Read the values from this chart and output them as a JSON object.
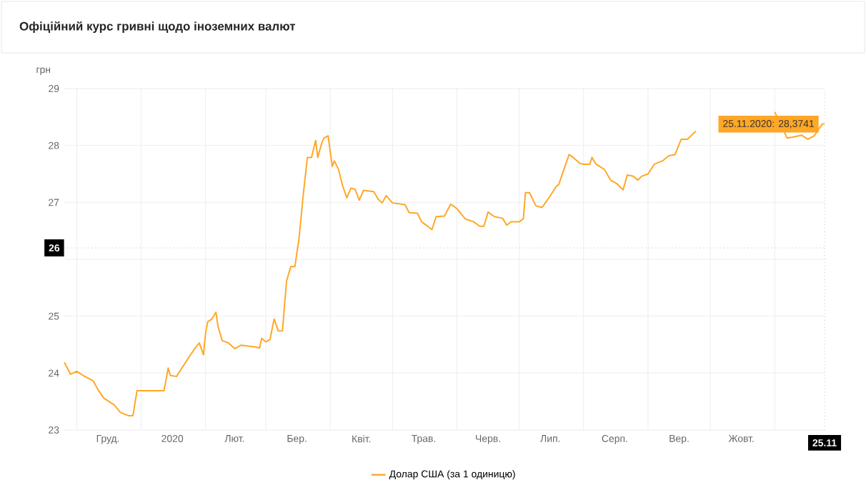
{
  "chart_data": {
    "type": "line",
    "title": "Офіційний курс гривні щодо іноземних валют",
    "ylabel": "грн",
    "x": [
      "2019-11-25",
      "2019-11-28",
      "2019-12-01",
      "2019-12-04",
      "2019-12-09",
      "2019-12-11",
      "2019-12-14",
      "2019-12-19",
      "2019-12-22",
      "2019-12-26",
      "2019-12-28",
      "2019-12-30",
      "2020-01-01",
      "2020-01-12",
      "2020-01-14",
      "2020-01-15",
      "2020-01-18",
      "2020-01-21",
      "2020-01-24",
      "2020-01-27",
      "2020-01-29",
      "2020-01-31",
      "2020-02-01",
      "2020-02-02",
      "2020-02-04",
      "2020-02-06",
      "2020-02-07",
      "2020-02-09",
      "2020-02-12",
      "2020-02-15",
      "2020-02-18",
      "2020-02-25",
      "2020-02-27",
      "2020-02-28",
      "2020-03-01",
      "2020-03-03",
      "2020-03-05",
      "2020-03-07",
      "2020-03-09",
      "2020-03-11",
      "2020-03-13",
      "2020-03-15",
      "2020-03-17",
      "2020-03-19",
      "2020-03-21",
      "2020-03-23",
      "2020-03-25",
      "2020-03-26",
      "2020-03-28",
      "2020-03-29",
      "2020-03-31",
      "2020-04-02",
      "2020-04-03",
      "2020-04-05",
      "2020-04-07",
      "2020-04-09",
      "2020-04-11",
      "2020-04-13",
      "2020-04-15",
      "2020-04-17",
      "2020-04-22",
      "2020-04-24",
      "2020-04-26",
      "2020-04-28",
      "2020-05-01",
      "2020-05-07",
      "2020-05-09",
      "2020-05-13",
      "2020-05-15",
      "2020-05-20",
      "2020-05-22",
      "2020-05-26",
      "2020-05-29",
      "2020-06-01",
      "2020-06-05",
      "2020-06-09",
      "2020-06-12",
      "2020-06-14",
      "2020-06-16",
      "2020-06-19",
      "2020-06-23",
      "2020-06-25",
      "2020-06-27",
      "2020-07-01",
      "2020-07-03",
      "2020-07-04",
      "2020-07-06",
      "2020-07-09",
      "2020-07-12",
      "2020-07-16",
      "2020-07-19",
      "2020-07-20",
      "2020-07-23",
      "2020-07-25",
      "2020-07-27",
      "2020-07-30",
      "2020-08-01",
      "2020-08-04",
      "2020-08-05",
      "2020-08-07",
      "2020-08-11",
      "2020-08-14",
      "2020-08-17",
      "2020-08-20",
      "2020-08-22",
      "2020-08-25",
      "2020-08-27",
      "2020-08-29",
      "2020-09-01",
      "2020-09-04",
      "2020-09-08",
      "2020-09-11",
      "2020-09-14",
      "2020-09-17",
      "2020-09-20",
      "2020-09-24",
      "2020-10-10",
      "2020-11-01",
      "2020-11-07",
      "2020-11-10",
      "2020-11-14",
      "2020-11-17",
      "2020-11-20",
      "2020-11-24",
      "2020-11-25"
    ],
    "series": [
      {
        "name": "Долар США (за 1 одиницю)",
        "color": "#ffa726",
        "values": [
          24.19,
          23.98,
          24.03,
          23.96,
          23.86,
          23.72,
          23.56,
          23.44,
          23.31,
          23.25,
          23.25,
          23.69,
          23.69,
          23.69,
          24.09,
          23.96,
          23.94,
          24.11,
          24.28,
          24.44,
          24.53,
          24.32,
          24.7,
          24.9,
          24.95,
          25.07,
          24.82,
          24.57,
          24.53,
          24.43,
          24.49,
          24.46,
          24.44,
          24.61,
          24.55,
          24.59,
          24.95,
          24.74,
          24.74,
          25.62,
          25.87,
          25.87,
          26.37,
          27.12,
          27.79,
          27.79,
          28.09,
          27.79,
          28.05,
          28.13,
          28.17,
          27.63,
          27.73,
          27.58,
          27.29,
          27.08,
          27.25,
          27.23,
          27.04,
          27.21,
          27.19,
          27.06,
          26.99,
          27.12,
          26.99,
          26.96,
          26.82,
          26.81,
          26.66,
          26.52,
          26.75,
          26.76,
          26.97,
          26.89,
          26.71,
          26.66,
          26.58,
          26.58,
          26.83,
          26.75,
          26.72,
          26.6,
          26.66,
          26.66,
          26.71,
          27.17,
          27.17,
          26.94,
          26.91,
          27.12,
          27.29,
          27.31,
          27.63,
          27.84,
          27.79,
          27.69,
          27.67,
          27.67,
          27.79,
          27.67,
          27.58,
          27.39,
          27.33,
          27.22,
          27.48,
          27.46,
          27.39,
          27.46,
          27.5,
          27.67,
          27.73,
          27.82,
          27.84,
          28.11,
          28.11,
          28.25,
          null,
          28.59,
          28.13,
          28.15,
          28.18,
          28.11,
          28.17,
          28.38,
          28.3741
        ]
      }
    ],
    "xlim": [
      "2019-11-25",
      "2020-11-25"
    ],
    "xticks": [
      {
        "value": "2019-12-01",
        "label": null
      },
      {
        "value": "2020-01-01",
        "label": null
      },
      {
        "value": "2020-02-01",
        "label": null
      },
      {
        "value": "2020-03-01",
        "label": null
      },
      {
        "value": "2020-04-01",
        "label": null
      },
      {
        "value": "2020-05-01",
        "label": null
      },
      {
        "value": "2020-06-01",
        "label": null
      },
      {
        "value": "2020-07-01",
        "label": null
      },
      {
        "value": "2020-08-01",
        "label": null
      },
      {
        "value": "2020-09-01",
        "label": null
      },
      {
        "value": "2020-10-01",
        "label": null
      },
      {
        "value": "2020-11-01",
        "label": null
      },
      {
        "value": "2019-12-16",
        "label": "Груд."
      },
      {
        "value": "2020-01-16",
        "label": "2020"
      },
      {
        "value": "2020-02-15",
        "label": "Лют."
      },
      {
        "value": "2020-03-16",
        "label": "Бер."
      },
      {
        "value": "2020-04-16",
        "label": "Квіт."
      },
      {
        "value": "2020-05-16",
        "label": "Трав."
      },
      {
        "value": "2020-06-16",
        "label": "Черв."
      },
      {
        "value": "2020-07-16",
        "label": "Лип."
      },
      {
        "value": "2020-08-16",
        "label": "Серп."
      },
      {
        "value": "2020-09-16",
        "label": "Вер."
      },
      {
        "value": "2020-10-16",
        "label": "Жовт."
      },
      {
        "value": "2020-11-25",
        "label": "25.11"
      }
    ],
    "ylim": [
      23,
      29
    ],
    "yticks": [
      23,
      24,
      25,
      {
        "value": 26,
        "label": null
      },
      27,
      28,
      29
    ],
    "ref_lines": [
      {
        "axis": "y",
        "value": 26.2,
        "label": "26",
        "color": "#999999",
        "line_style": "dotted"
      },
      {
        "axis": "x",
        "value": "2020-11-25",
        "color": "#999999",
        "line_style": "dotted"
      }
    ],
    "annotations": [
      {
        "text": "25.11.2020: 28,3741",
        "x": "2020-11-25",
        "y": 28.3741
      }
    ],
    "grid": true,
    "legend": "bottom",
    "marker": "none",
    "line_style": "solid"
  }
}
